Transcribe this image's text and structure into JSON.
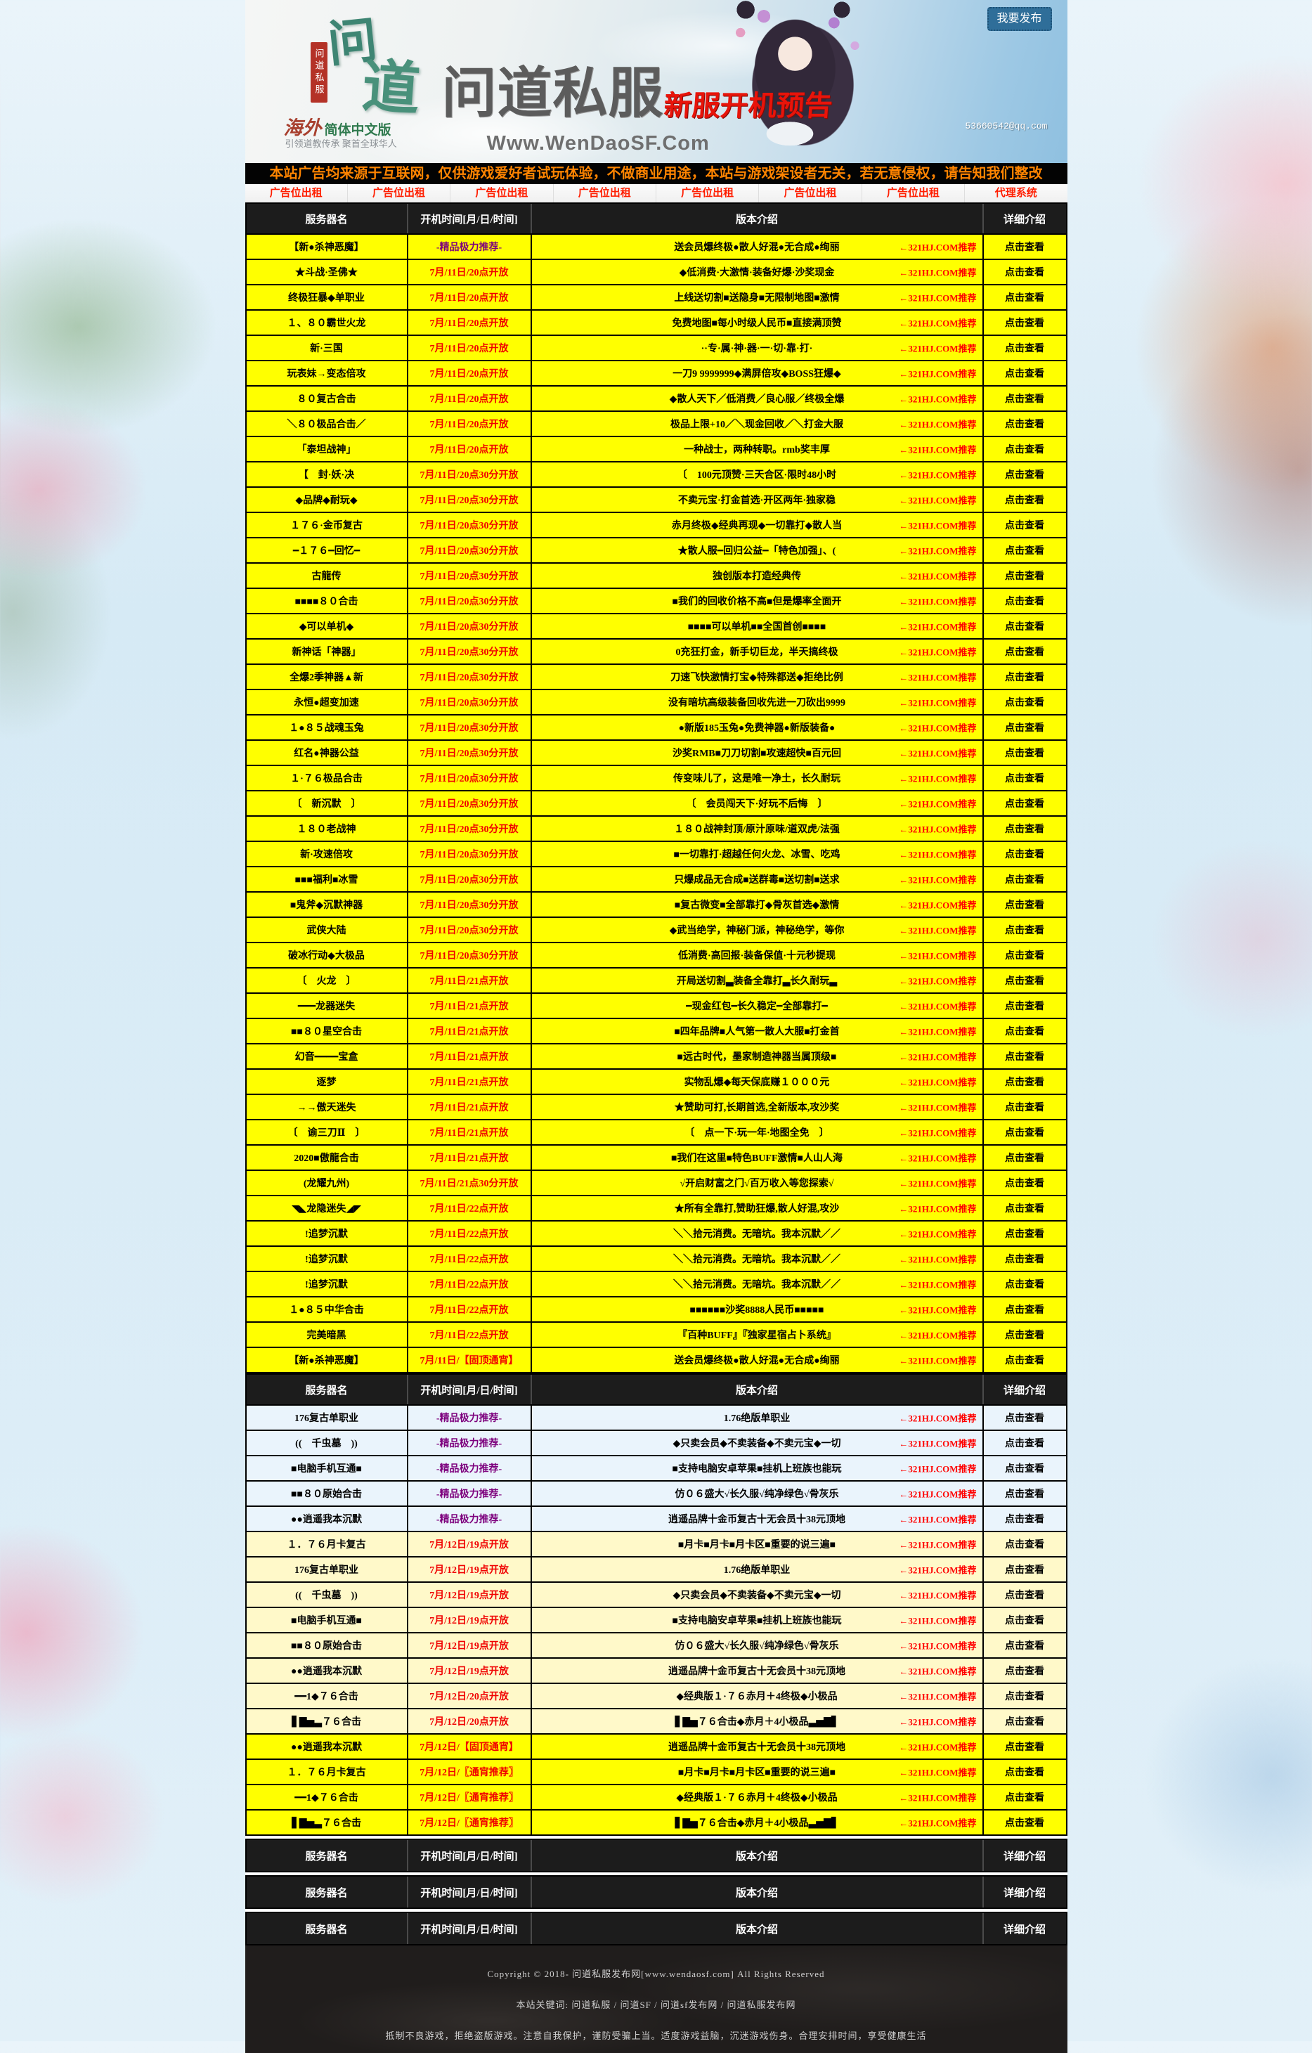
{
  "banner": {
    "logo_char1": "问",
    "logo_char2": "道",
    "logo_seal": "问道私服",
    "logo_sub_left": "海外",
    "logo_sub_right": "简体中文版",
    "logo_tagline": "引领道教传承 聚首全球华人",
    "title": "问道私服",
    "subtitle": "新服开机预告",
    "url": "Www.WenDaoSF.Com",
    "email": "53660542@qq.com",
    "publish_button": "我要发布"
  },
  "notice": "本站广告均来源于互联网，仅供游戏爱好者试玩体验，不做商业用途，本站与游戏架设者无关，若无意侵权，请告知我们整改",
  "ad_links": [
    "广告位出租",
    "广告位出租",
    "广告位出租",
    "广告位出租",
    "广告位出租",
    "广告位出租",
    "广告位出租",
    "代理系统"
  ],
  "table_headers": [
    "服务器名",
    "开机时间[月/日/时间]",
    "版本介绍",
    "详细介绍"
  ],
  "promo_label": "←321HJ.COM推荐",
  "view_label": "点击查看",
  "colors": {
    "row_yellow": "#ffff00",
    "row_blue": "#eaf4fc",
    "row_cream": "#fff9c9",
    "time_red": "#f00000",
    "time_purple": "#7d007d",
    "promo_red": "#ff0000",
    "header_bg": "#1c1c1c",
    "notice_orange": "#ff8400",
    "button_blue": "#2f6e99"
  },
  "table1": {
    "rows": [
      {
        "n": "【新●杀神恶魔】",
        "t": "-精品极力推荐-",
        "p": true,
        "d": "送会员爆终极●散人好混●无合成●绚丽"
      },
      {
        "n": "★斗战·圣佛★",
        "t": "7月/11日/20点开放",
        "d": "◆低消费·大激情·装备好爆·沙奖现金"
      },
      {
        "n": "终极狂暴◆单职业",
        "t": "7月/11日/20点开放",
        "d": "上线送切割■送隐身■无限制地图■激情"
      },
      {
        "n": "１、８０霸世火龙",
        "t": "7月/11日/20点开放",
        "d": "免费地图■每小时级人民币■直接满顶赞"
      },
      {
        "n": "新·三国",
        "t": "7月/11日/20点开放",
        "d": "··专·属·神·器·一·切·靠·打·"
      },
      {
        "n": "玩表妹→变态倍攻",
        "t": "7月/11日/20点开放",
        "d": "一刀9 9999999◆满屏倍攻◆BOSS狂爆◆"
      },
      {
        "n": "８０复古合击",
        "t": "7月/11日/20点开放",
        "d": "◆散人天下／低消费／良心服／终极全爆"
      },
      {
        "n": "＼８０极品合击／",
        "t": "7月/11日/20点开放",
        "d": "极品上限+10／＼现金回收／＼打金大服"
      },
      {
        "n": "「泰坦战神」",
        "t": "7月/11日/20点开放",
        "d": "一种战士，两种转职。rmb奖丰厚"
      },
      {
        "n": "【　封·妖·决",
        "t": "7月/11日/20点30分开放",
        "d": "〔　100元顶赞·三天合区·限时48小时"
      },
      {
        "n": "◆品牌◆耐玩◆",
        "t": "7月/11日/20点30分开放",
        "d": "不卖元宝·打金首选·开区两年·独家稳"
      },
      {
        "n": "１７６·金币复古",
        "t": "7月/11日/20点30分开放",
        "d": "赤月终极◆经典再现◆一切靠打◆散人当"
      },
      {
        "n": "━１７６━回忆━",
        "t": "7月/11日/20点30分开放",
        "d": "★散人服━回归公益━「特色加强」、("
      },
      {
        "n": "古龍传",
        "t": "7月/11日/20点30分开放",
        "d": "独创版本打造经典传"
      },
      {
        "n": "■■■■８０合击",
        "t": "7月/11日/20点30分开放",
        "d": "■我们的回收价格不高■但是爆率全面开"
      },
      {
        "n": "◆可以单机◆",
        "t": "7月/11日/20点30分开放",
        "d": "■■■■可以单机■■全国首创■■■■"
      },
      {
        "n": "新神话「神器」",
        "t": "7月/11日/20点30分开放",
        "d": "0充狂打金，新手切巨龙，半天搞终极"
      },
      {
        "n": "全爆2季神器▲新",
        "t": "7月/11日/20点30分开放",
        "d": "刀速飞快激情打宝◆特殊都送◆拒绝比例"
      },
      {
        "n": "永恒●超变加速",
        "t": "7月/11日/20点30分开放",
        "d": "没有暗坑高级装备回收先进一刀砍出9999"
      },
      {
        "n": "１●８５战魂玉兔",
        "t": "7月/11日/20点30分开放",
        "d": "●新版185玉兔●免费神器●新版装备●"
      },
      {
        "n": "红名●神器公益",
        "t": "7月/11日/20点30分开放",
        "d": "沙奖RMB■刀刀切割■攻速超快■百元回"
      },
      {
        "n": "１·７６极品合击",
        "t": "7月/11日/20点30分开放",
        "d": "传变味儿了，这是唯一净土，长久耐玩"
      },
      {
        "n": "〔　新沉默　〕",
        "t": "7月/11日/20点30分开放",
        "d": "〔　会员闯天下·好玩不后悔　〕"
      },
      {
        "n": "１８０老战神",
        "t": "7月/11日/20点30分开放",
        "d": "１８０战神封顶/原汁原味/道双虎/法强"
      },
      {
        "n": "新·攻速倍攻",
        "t": "7月/11日/20点30分开放",
        "d": "■一切靠打·超越任何火龙、冰雪、吃鸡"
      },
      {
        "n": "■■■福利■冰雪",
        "t": "7月/11日/20点30分开放",
        "d": "只爆成品无合成■送群毒■送切割■送求"
      },
      {
        "n": "■鬼斧◆沉默神器",
        "t": "7月/11日/20点30分开放",
        "d": "■复古微变■全部靠打◆骨灰首选◆激情"
      },
      {
        "n": "武侠大陆",
        "t": "7月/11日/20点30分开放",
        "d": "◆武当绝学，神秘门派，神秘绝学，等你"
      },
      {
        "n": "破冰行动◆大极品",
        "t": "7月/11日/20点30分开放",
        "d": "低消费·高回报·装备保值·十元秒提现"
      },
      {
        "n": "〔　火龙　〕",
        "t": "7月/11日/21点开放",
        "d": "开局送切割▃装备全靠打▃长久耐玩▃"
      },
      {
        "n": "━━━龙器迷失",
        "t": "7月/11日/21点开放",
        "d": "━现金红包━长久稳定━全部靠打━"
      },
      {
        "n": "■■８０星空合击",
        "t": "7月/11日/21点开放",
        "d": "■四年品牌■人气第一散人大服■打金首"
      },
      {
        "n": "幻音━━━━宝盒",
        "t": "7月/11日/21点开放",
        "d": "■远古时代，墨家制造神器当属顶级■"
      },
      {
        "n": "逐梦",
        "t": "7月/11日/21点开放",
        "d": "实物乱爆◆每天保底赚１０００元"
      },
      {
        "n": "→→傲天迷失",
        "t": "7月/11日/21点开放",
        "d": "★赞助可打,长期首选,全新版本,攻沙奖"
      },
      {
        "n": "〔　谕三刀Ⅱ　〕",
        "t": "7月/11日/21点开放",
        "d": "〔　点一下·玩一年·地图全免　〕"
      },
      {
        "n": "2020■傲龍合击",
        "t": "7月/11日/21点开放",
        "d": "■我们在这里■特色BUFF激情■人山人海"
      },
      {
        "n": "(龙耀九州)",
        "t": "7月/11日/21点30分开放",
        "d": "√开启财富之门√百万收入等您探索√"
      },
      {
        "n": "◥◣龙隐迷失◢◤",
        "t": "7月/11日/22点开放",
        "d": "★所有全靠打,赞助狂爆,散人好混,攻沙"
      },
      {
        "n": "!追梦沉默",
        "t": "7月/11日/22点开放",
        "d": "＼＼拾元消费。无暗坑。我本沉默／／"
      },
      {
        "n": "!追梦沉默",
        "t": "7月/11日/22点开放",
        "d": "＼＼拾元消费。无暗坑。我本沉默／／"
      },
      {
        "n": "!追梦沉默",
        "t": "7月/11日/22点开放",
        "d": "＼＼拾元消费。无暗坑。我本沉默／／"
      },
      {
        "n": "１●８５中华合击",
        "t": "7月/11日/22点开放",
        "d": "■■■■■■沙奖8888人民币■■■■■"
      },
      {
        "n": "完美暗黑",
        "t": "7月/11日/22点开放",
        "d": "『百种BUFF』『独家星宿占卜系统』"
      },
      {
        "n": "【新●杀神恶魔】",
        "t": "7月/11日/【固顶通宵】",
        "d": "送会员爆终极●散人好混●无合成●绚丽"
      }
    ]
  },
  "table2": {
    "rows": [
      {
        "n": "176复古单职业",
        "t": "-精品极力推荐-",
        "p": true,
        "bg": "blue",
        "d": "1.76绝版单职业"
      },
      {
        "n": "((　千虫墓　))",
        "t": "-精品极力推荐-",
        "p": true,
        "bg": "blue",
        "d": "◆只卖会员◆不卖装备◆不卖元宝◆一切"
      },
      {
        "n": "■电脑手机互通■",
        "t": "-精品极力推荐-",
        "p": true,
        "bg": "blue",
        "d": "■支持电脑安卓苹果■挂机上班族也能玩"
      },
      {
        "n": "■■８０原始合击",
        "t": "-精品极力推荐-",
        "p": true,
        "bg": "blue",
        "d": "仿０６盛大√长久服√纯净绿色√骨灰乐"
      },
      {
        "n": "●●逍遥我本沉默",
        "t": "-精品极力推荐-",
        "p": true,
        "bg": "blue",
        "d": "逍遥品牌十金币复古十无会员十38元顶地"
      },
      {
        "n": "１．７６月卡复古",
        "t": "7月/12日/19点开放",
        "bg": "cream",
        "d": "■月卡■月卡■月卡区■重要的说三遍■"
      },
      {
        "n": "176复古单职业",
        "t": "7月/12日/19点开放",
        "bg": "cream",
        "d": "1.76绝版单职业"
      },
      {
        "n": "((　千虫墓　))",
        "t": "7月/12日/19点开放",
        "bg": "cream",
        "d": "◆只卖会员◆不卖装备◆不卖元宝◆一切"
      },
      {
        "n": "■电脑手机互通■",
        "t": "7月/12日/19点开放",
        "bg": "cream",
        "d": "■支持电脑安卓苹果■挂机上班族也能玩"
      },
      {
        "n": "■■８０原始合击",
        "t": "7月/12日/19点开放",
        "bg": "cream",
        "d": "仿０６盛大√长久服√纯净绿色√骨灰乐"
      },
      {
        "n": "●●逍遥我本沉默",
        "t": "7月/12日/19点开放",
        "bg": "cream",
        "d": "逍遥品牌十金币复古十无会员十38元顶地"
      },
      {
        "n": "━━1◆７６合击",
        "t": "7月/12日/20点开放",
        "bg": "cream",
        "d": "◆经典版１·７６赤月＋4终极◆小极品"
      },
      {
        "n": "▋▇▅▃７６合击",
        "t": "7月/12日/20点开放",
        "bg": "cream",
        "d": "▋▇▅７６合击◆赤月＋4小极品▃▅▇▋"
      },
      {
        "n": "●●逍遥我本沉默",
        "t": "7月/12日/【固顶通宵】",
        "bg": "yellow",
        "d": "逍遥品牌十金币复古十无会员十38元顶地"
      },
      {
        "n": "１．７６月卡复古",
        "t": "7月/12日/〖通宵推荐〗",
        "bg": "yellow",
        "d": "■月卡■月卡■月卡区■重要的说三遍■"
      },
      {
        "n": "━━1◆７６合击",
        "t": "7月/12日/〖通宵推荐〗",
        "bg": "yellow",
        "d": "◆经典版１·７６赤月＋4终极◆小极品"
      },
      {
        "n": "▋▇▅▃７６合击",
        "t": "7月/12日/〖通宵推荐〗",
        "bg": "yellow",
        "d": "▋▇▅７６合击◆赤月＋4小极品▃▅▇▋"
      }
    ]
  },
  "empty_table_count": 3,
  "footer": {
    "line1": "Copyright © 2018- 问道私服发布网[www.wendaosf.com] All Rights Reserved",
    "line2": "本站关键词: 问道私服 / 问道SF / 问道sf发布网 / 问道私服发布网",
    "line3": "抵制不良游戏，拒绝盗版游戏。注意自我保护，谨防受骗上当。适度游戏益脑，沉迷游戏伤身。合理安排时间，享受健康生活"
  }
}
